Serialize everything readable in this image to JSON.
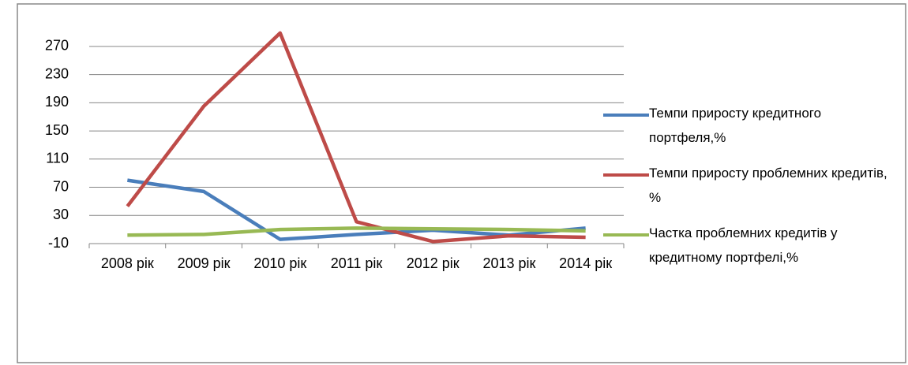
{
  "chart_data": {
    "type": "line",
    "categories": [
      "2008 рік",
      "2009 рік",
      "2010 рік",
      "2011 рік",
      "2012 рік",
      "2013 рік",
      "2014 рік"
    ],
    "series": [
      {
        "name": "Темпи приросту кредитного портфеля,%",
        "color": "#4a7ebb",
        "values": [
          80,
          64,
          -4,
          3,
          9,
          2,
          12
        ]
      },
      {
        "name": "Темпи приросту проблемних кредитів, %",
        "color": "#be4b48",
        "values": [
          43,
          185,
          289,
          21,
          -7,
          1,
          -1
        ]
      },
      {
        "name": "Частка проблемних кредитів у кредитному портфелі,%",
        "color": "#98b954",
        "values": [
          2,
          3,
          10,
          12,
          11,
          10,
          8
        ]
      }
    ],
    "ylim": [
      -10,
      290
    ],
    "yticks": [
      -10,
      30,
      70,
      110,
      150,
      190,
      230,
      270
    ],
    "grid": true,
    "legend": "right"
  }
}
